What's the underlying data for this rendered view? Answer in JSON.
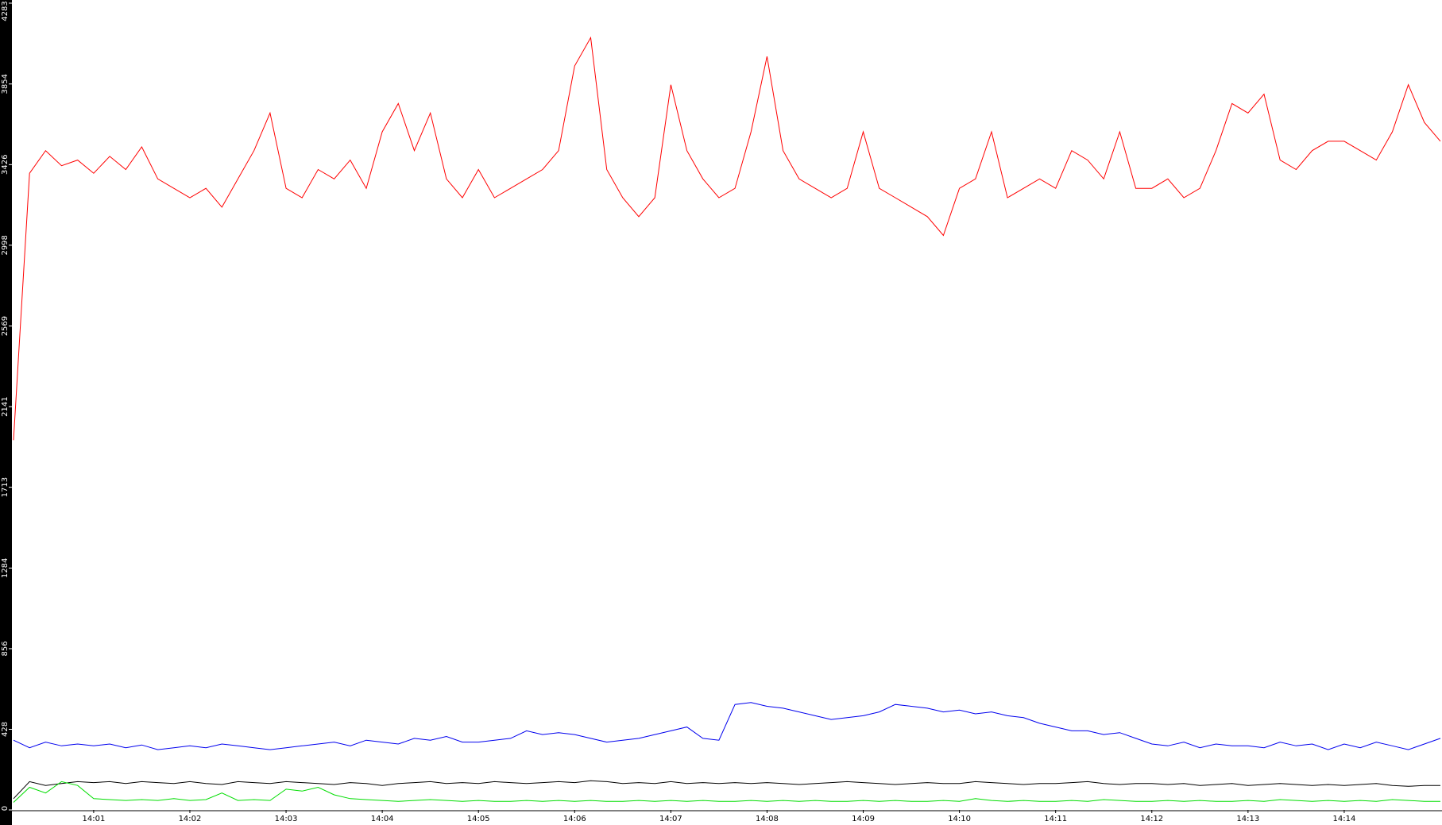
{
  "chart_data": {
    "type": "line",
    "categories": [
      null,
      null,
      null,
      null,
      null,
      "14:01",
      null,
      null,
      null,
      null,
      null,
      "14:02",
      null,
      null,
      null,
      null,
      null,
      "14:03",
      null,
      null,
      null,
      null,
      null,
      "14:04",
      null,
      null,
      null,
      null,
      null,
      "14:05",
      null,
      null,
      null,
      null,
      null,
      "14:06",
      null,
      null,
      null,
      null,
      null,
      "14:07",
      null,
      null,
      null,
      null,
      null,
      "14:08",
      null,
      null,
      null,
      null,
      null,
      "14:09",
      null,
      null,
      null,
      null,
      null,
      "14:10",
      null,
      null,
      null,
      null,
      null,
      "14:11",
      null,
      null,
      null,
      null,
      null,
      "14:12",
      null,
      null,
      null,
      null,
      null,
      "14:13",
      null,
      null,
      null,
      null,
      null,
      "14:14",
      null,
      null,
      null,
      null,
      null,
      null
    ],
    "series": [
      {
        "color": "#ff0000",
        "values": [
          1963,
          3380,
          3500,
          3420,
          3450,
          3380,
          3470,
          3400,
          3520,
          3350,
          3300,
          3250,
          3300,
          3200,
          3350,
          3500,
          3700,
          3300,
          3250,
          3400,
          3350,
          3450,
          3300,
          3600,
          3750,
          3500,
          3700,
          3350,
          3250,
          3400,
          3250,
          3300,
          3350,
          3400,
          3500,
          3950,
          4100,
          3400,
          3250,
          3150,
          3250,
          3850,
          3500,
          3350,
          3250,
          3300,
          3600,
          4000,
          3500,
          3350,
          3300,
          3250,
          3300,
          3600,
          3300,
          3250,
          3200,
          3150,
          3050,
          3300,
          3350,
          3600,
          3250,
          3300,
          3350,
          3300,
          3500,
          3450,
          3350,
          3600,
          3300,
          3300,
          3350,
          3250,
          3300,
          3500,
          3750,
          3700,
          3800,
          3450,
          3400,
          3500,
          3550,
          3550,
          3500,
          3450,
          3600,
          3850,
          3650,
          3550
        ]
      },
      {
        "color": "#0000ee",
        "values": [
          370,
          330,
          360,
          340,
          350,
          340,
          350,
          330,
          345,
          320,
          330,
          340,
          330,
          350,
          340,
          330,
          320,
          330,
          340,
          350,
          360,
          340,
          370,
          360,
          350,
          380,
          370,
          390,
          360,
          360,
          370,
          380,
          420,
          400,
          410,
          400,
          380,
          360,
          370,
          380,
          400,
          420,
          440,
          380,
          370,
          560,
          570,
          550,
          540,
          520,
          500,
          480,
          490,
          500,
          520,
          560,
          550,
          540,
          520,
          530,
          510,
          520,
          500,
          490,
          460,
          440,
          420,
          420,
          400,
          410,
          380,
          350,
          340,
          360,
          330,
          350,
          340,
          340,
          330,
          360,
          340,
          350,
          320,
          350,
          330,
          360,
          340,
          320,
          350,
          380
        ]
      },
      {
        "color": "#000000",
        "values": [
          60,
          150,
          130,
          140,
          150,
          145,
          150,
          140,
          150,
          145,
          140,
          150,
          140,
          135,
          150,
          145,
          140,
          150,
          145,
          140,
          135,
          145,
          140,
          130,
          140,
          145,
          150,
          140,
          145,
          140,
          150,
          145,
          140,
          145,
          150,
          145,
          155,
          150,
          140,
          145,
          140,
          150,
          140,
          145,
          140,
          145,
          140,
          145,
          140,
          135,
          140,
          145,
          150,
          145,
          140,
          135,
          140,
          145,
          140,
          140,
          150,
          145,
          140,
          135,
          140,
          140,
          145,
          150,
          140,
          135,
          140,
          140,
          135,
          140,
          130,
          135,
          140,
          130,
          135,
          140,
          135,
          130,
          135,
          130,
          135,
          140,
          130,
          125,
          130,
          130
        ]
      },
      {
        "color": "#00dd00",
        "values": [
          40,
          120,
          90,
          150,
          130,
          60,
          55,
          50,
          55,
          50,
          60,
          50,
          55,
          90,
          50,
          55,
          50,
          110,
          100,
          120,
          80,
          60,
          55,
          50,
          45,
          50,
          55,
          50,
          45,
          50,
          45,
          45,
          50,
          45,
          50,
          45,
          50,
          45,
          45,
          50,
          45,
          50,
          45,
          50,
          45,
          45,
          50,
          45,
          50,
          45,
          50,
          45,
          45,
          50,
          45,
          50,
          45,
          45,
          50,
          45,
          60,
          50,
          45,
          50,
          45,
          45,
          50,
          45,
          55,
          50,
          45,
          45,
          50,
          45,
          50,
          45,
          45,
          50,
          45,
          55,
          50,
          45,
          50,
          45,
          50,
          45,
          55,
          50,
          45,
          45
        ]
      }
    ],
    "ylim": [
      0,
      4283
    ],
    "yticks": [
      0,
      428,
      856,
      1284,
      1713,
      2141,
      2569,
      2998,
      3426,
      3854,
      4283
    ]
  }
}
